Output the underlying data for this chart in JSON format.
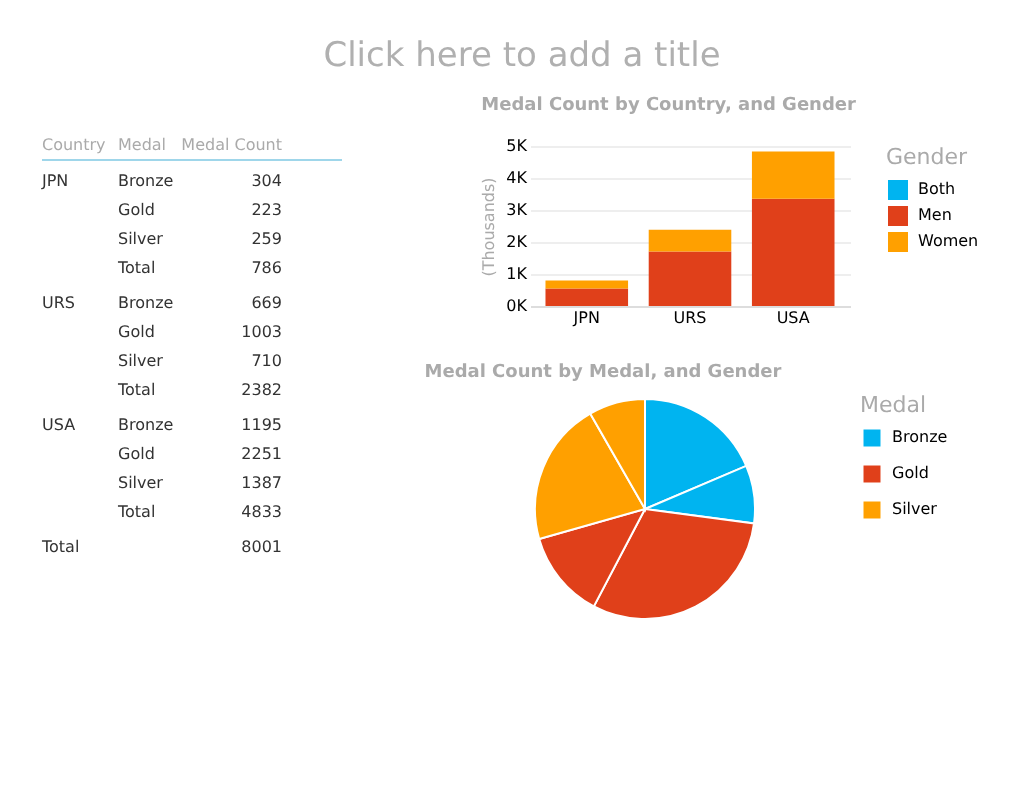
{
  "chart_data": [
    {
      "type": "other",
      "title": "Click here to add a title"
    },
    {
      "type": "other",
      "categories": [
        "Country",
        "Medal",
        "Medal Count"
      ],
      "cell_labels": [
        [
          "JPN",
          "Bronze",
          "304"
        ],
        [
          null,
          "Gold",
          "223"
        ],
        [
          null,
          "Silver",
          "259"
        ],
        [
          null,
          "Total",
          "786"
        ],
        [
          "URS",
          "Bronze",
          "669"
        ],
        [
          null,
          "Gold",
          "1003"
        ],
        [
          null,
          "Silver",
          "710"
        ],
        [
          null,
          "Total",
          "2382"
        ],
        [
          "USA",
          "Bronze",
          "1195"
        ],
        [
          null,
          "Gold",
          "2251"
        ],
        [
          null,
          "Silver",
          "1387"
        ],
        [
          null,
          "Total",
          "4833"
        ],
        [
          "Total",
          null,
          "8001"
        ]
      ]
    },
    {
      "type": "bar",
      "title": "Medal Count by Country, and Gender",
      "ylabel": "(Thousands)",
      "legend_title": "Gender",
      "stacked": true,
      "categories": [
        "JPN",
        "URS",
        "USA"
      ],
      "series": [
        {
          "name": "Both",
          "color": "#00b4f0",
          "values": [
            0,
            0,
            0
          ]
        },
        {
          "name": "Men",
          "color": "#e0401a",
          "values": [
            550,
            1700,
            3350
          ]
        },
        {
          "name": "Women",
          "color": "#ffa000",
          "values": [
            250,
            680,
            1480
          ]
        }
      ],
      "ylim": [
        0,
        5000
      ],
      "yticks": [
        {
          "value": 0,
          "label": "0K"
        },
        {
          "value": 1000,
          "label": "1K"
        },
        {
          "value": 2000,
          "label": "2K"
        },
        {
          "value": 3000,
          "label": "3K"
        },
        {
          "value": 4000,
          "label": "4K"
        },
        {
          "value": 5000,
          "label": "5K"
        }
      ],
      "grid": "y",
      "legend": "right"
    },
    {
      "type": "pie",
      "title": "Medal Count by Medal, and Gender",
      "legend_title": "Medal",
      "legend": "right",
      "categories": [
        "Bronze",
        null,
        "Gold",
        null,
        "Silver",
        null
      ],
      "values": [
        18.6,
        8.5,
        30.6,
        12.9,
        21.1,
        8.3
      ],
      "colors": [
        "#00b4f0",
        "#00b4f0",
        "#e0401a",
        "#e0401a",
        "#ffa000",
        "#ffa000"
      ]
    }
  ]
}
